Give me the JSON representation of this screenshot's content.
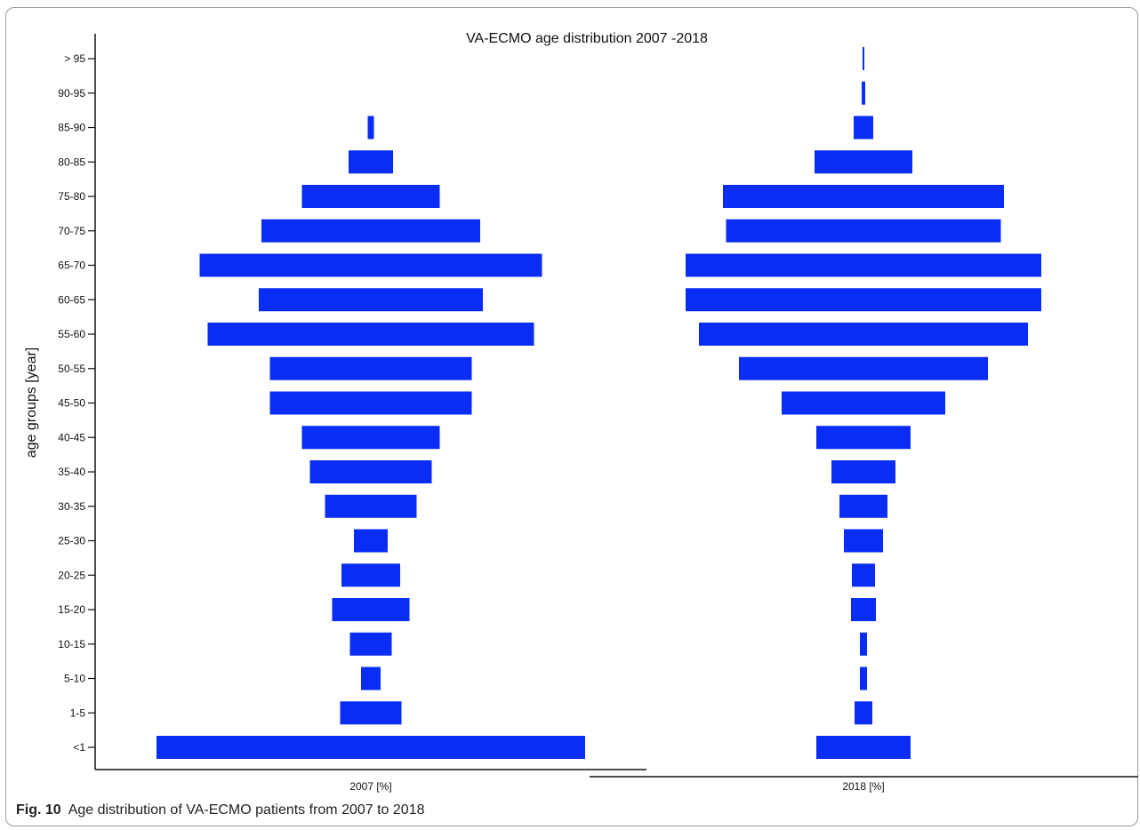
{
  "figure": {
    "caption_label": "Fig. 10",
    "caption_text": "Age distribution of VA-ECMO patients from 2007 to 2018"
  },
  "chart_data": {
    "type": "bar",
    "title": "VA-ECMO age distribution 2007 -2018",
    "ylabel": "age groups [year]",
    "categories": [
      "<1",
      "1-5",
      "5-10",
      "10-15",
      "15-20",
      "20-25",
      "25-30",
      "30-35",
      "35-40",
      "40-45",
      "45-50",
      "50-55",
      "55-60",
      "60-65",
      "65-70",
      "70-75",
      "75-80",
      "80-85",
      "85-90",
      "90-95",
      "> 95"
    ],
    "series": [
      {
        "name": "2007 [%]",
        "xlabel": "2007 [%]",
        "color": "#0a2df5",
        "values": [
          482,
          69,
          22,
          47,
          87,
          66,
          38,
          103,
          137,
          155,
          227,
          227,
          367,
          252,
          385,
          246,
          155,
          50,
          7,
          0,
          0
        ]
      },
      {
        "name": "2018 [%]",
        "xlabel": "2018 [%]",
        "color": "#0a2df5",
        "values": [
          106,
          20,
          8,
          8,
          28,
          26,
          44,
          54,
          72,
          106,
          184,
          280,
          370,
          400,
          400,
          309,
          316,
          110,
          22,
          4,
          2
        ]
      }
    ],
    "grid": false
  }
}
